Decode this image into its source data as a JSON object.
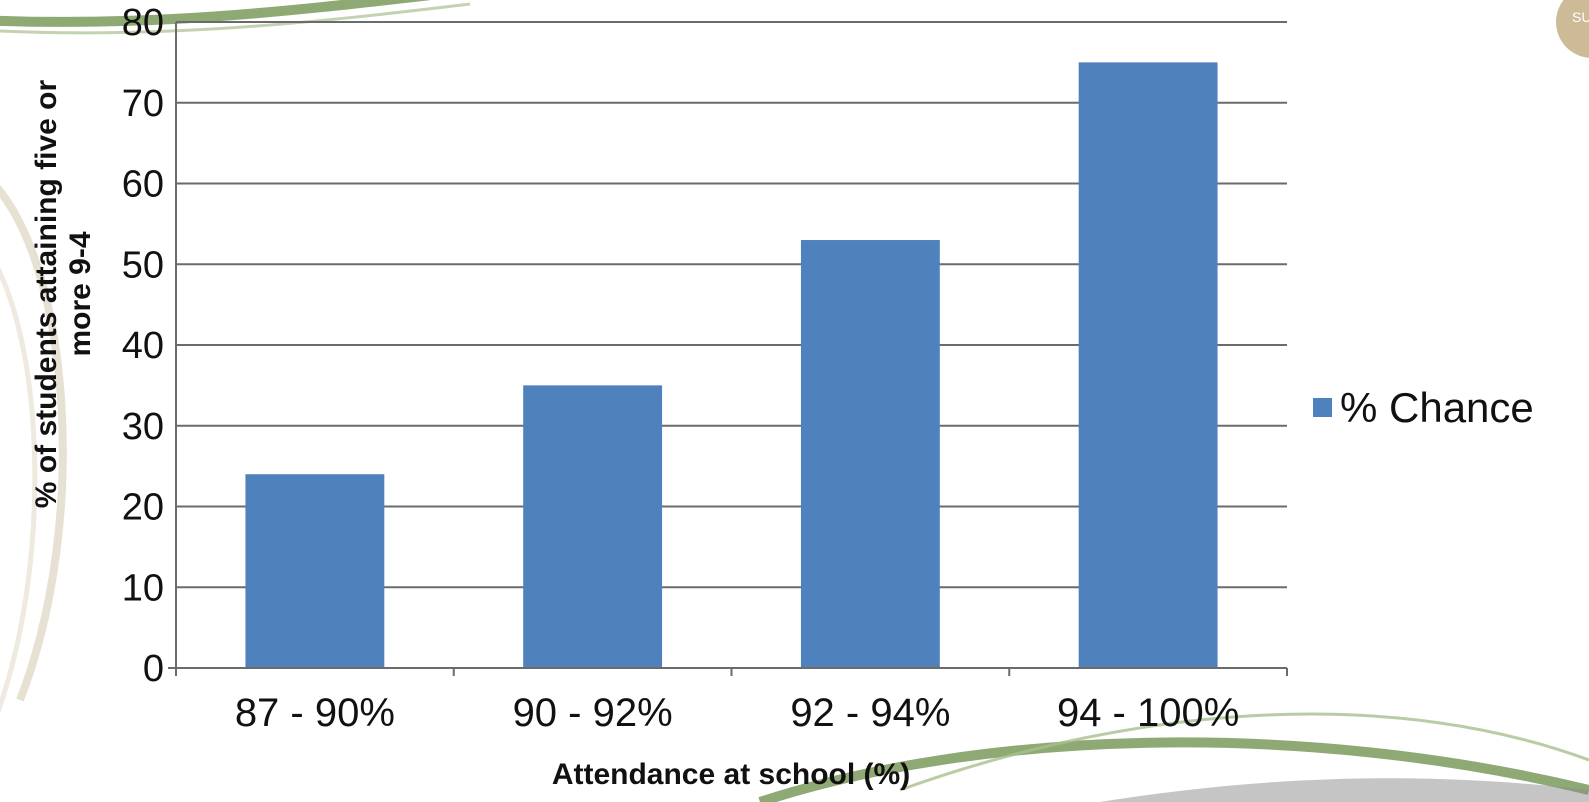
{
  "chart_data": {
    "type": "bar",
    "categories": [
      "87 - 90%",
      "90 - 92%",
      "92 - 94%",
      "94 - 100%"
    ],
    "series": [
      {
        "name": "% Chance",
        "values": [
          24,
          35,
          53,
          75
        ],
        "color": "#4f81bd"
      }
    ],
    "title": "",
    "xlabel": "Attendance at school (%)",
    "ylabel_lines": [
      "% of students attaining five or",
      "more 9-4"
    ],
    "ylim": [
      0,
      80
    ],
    "yticks": [
      0,
      10,
      20,
      30,
      40,
      50,
      60,
      70,
      80
    ],
    "grid": true,
    "legend_position": "right"
  },
  "decoration": {
    "corner_badge_text": "SU",
    "swoosh_color": "#7a9a5a",
    "ring_color": "#e7e1d3",
    "badge_color": "#cdbb98"
  }
}
